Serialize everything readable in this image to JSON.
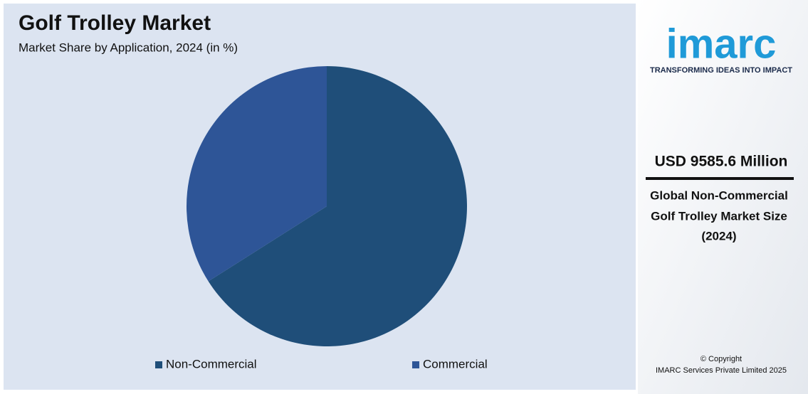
{
  "chart_data": {
    "type": "pie",
    "title": "Golf Trolley Market",
    "subtitle": "Market Share by Application, 2024 (in %)",
    "categories": [
      "Non-Commercial",
      "Commercial"
    ],
    "values": [
      66,
      34
    ],
    "colors": [
      "#1f4e79",
      "#2e5597"
    ],
    "legend": "bottom"
  },
  "sidebar": {
    "logo": "imarc",
    "tagline": "TRANSFORMING IDEAS INTO IMPACT",
    "headline": "USD 9585.6 Million",
    "description": [
      "Global Non-Commercial",
      "Golf Trolley Market Size",
      "(2024)"
    ],
    "copyright": [
      "© Copyright",
      "IMARC Services Private Limited 2025"
    ]
  }
}
